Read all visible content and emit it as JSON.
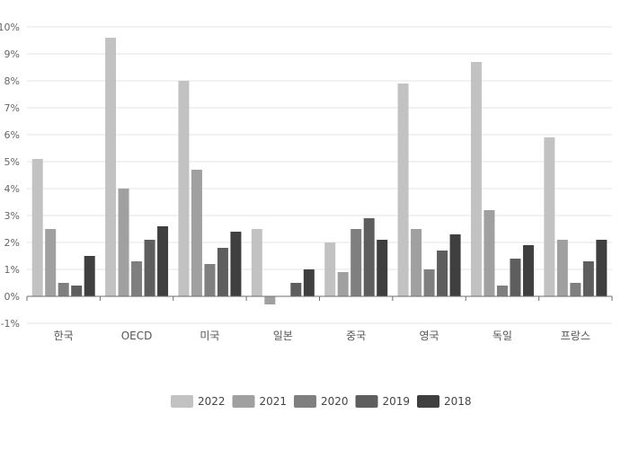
{
  "chart_data": {
    "type": "bar",
    "categories": [
      "한국",
      "OECD",
      "미국",
      "일본",
      "중국",
      "영국",
      "독일",
      "프랑스"
    ],
    "series": [
      {
        "name": "2022",
        "color": "#c2c2c2",
        "values": [
          5.1,
          9.6,
          8.0,
          2.5,
          2.0,
          7.9,
          8.7,
          5.9
        ]
      },
      {
        "name": "2021",
        "color": "#a0a0a0",
        "values": [
          2.5,
          4.0,
          4.7,
          -0.3,
          0.9,
          2.5,
          3.2,
          2.1
        ]
      },
      {
        "name": "2020",
        "color": "#7f7f7f",
        "values": [
          0.5,
          1.3,
          1.2,
          0.0,
          2.5,
          1.0,
          0.4,
          0.5
        ]
      },
      {
        "name": "2019",
        "color": "#5e5e5e",
        "values": [
          0.4,
          2.1,
          1.8,
          0.5,
          2.9,
          1.7,
          1.4,
          1.3
        ]
      },
      {
        "name": "2018",
        "color": "#3f3f3f",
        "values": [
          1.5,
          2.6,
          2.4,
          1.0,
          2.1,
          2.3,
          1.9,
          2.1
        ]
      }
    ],
    "ylim": [
      -1,
      10
    ],
    "yticks": [
      "-1%",
      "0%",
      "1%",
      "2%",
      "3%",
      "4%",
      "5%",
      "6%",
      "7%",
      "8%",
      "9%",
      "10%"
    ],
    "grid": true,
    "legend_position": "bottom"
  }
}
